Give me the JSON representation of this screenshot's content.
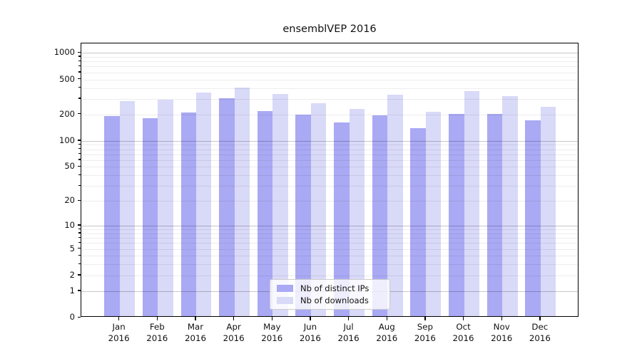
{
  "chart_data": {
    "type": "bar",
    "title": "ensemblVEP 2016",
    "categories": [
      "Jan",
      "Feb",
      "Mar",
      "Apr",
      "May",
      "Jun",
      "Jul",
      "Aug",
      "Sep",
      "Oct",
      "Nov",
      "Dec"
    ],
    "category_year": "2016",
    "series": [
      {
        "name": "Nb of distinct IPs",
        "color": "#a9a9f4",
        "values": [
          185,
          173,
          204,
          292,
          212,
          191,
          157,
          187,
          134,
          196,
          196,
          165
        ]
      },
      {
        "name": "Nb of downloads",
        "color": "#d9d9f8",
        "values": [
          275,
          285,
          340,
          389,
          331,
          259,
          223,
          323,
          207,
          354,
          309,
          234
        ]
      }
    ],
    "yscale": "log1p",
    "ylim": [
      0,
      1293
    ],
    "yticks": [
      0,
      1,
      2,
      5,
      10,
      20,
      50,
      100,
      200,
      500,
      1000
    ],
    "major_gridlines": [
      1,
      10,
      100,
      1000
    ],
    "minor_gridlines": [
      2,
      3,
      4,
      5,
      6,
      7,
      8,
      9,
      20,
      30,
      40,
      50,
      60,
      70,
      80,
      90,
      200,
      300,
      400,
      500,
      600,
      700,
      800,
      900
    ],
    "grid": "on",
    "legend_position": "lower-center",
    "bar_width_fraction": 0.4
  }
}
